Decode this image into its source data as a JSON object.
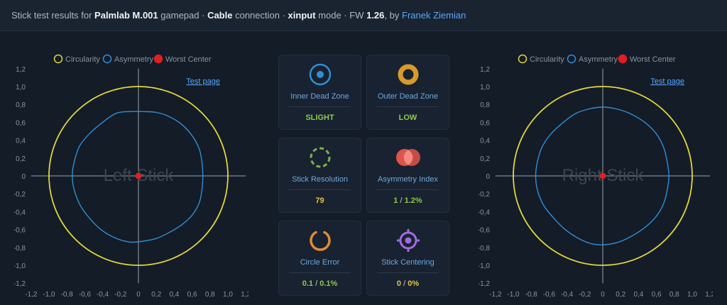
{
  "header": {
    "prefix": "Stick test results for",
    "device": "Palmlab M.001",
    "device_suffix": "gamepad ·",
    "connection": "Cable",
    "connection_suffix": "connection ·",
    "mode": "xinput",
    "mode_suffix": "mode · FW",
    "firmware": "1.26",
    "by_text": ", by",
    "author": "Franek Ziemian"
  },
  "legend": {
    "circularity": "Circularity",
    "asymmetry": "Asymmetry",
    "worst_center": "Worst Center"
  },
  "colors": {
    "circularity": "#e3d43a",
    "asymmetry": "#2f8fd6",
    "worst_center": "#e51c23",
    "axis": "#7d8590",
    "label_yellow": "#e3c341",
    "label_green": "#8fc94a"
  },
  "left_chart": {
    "watermark": "Left Stick",
    "test_link": "Test page"
  },
  "right_chart": {
    "watermark": "Right Stick",
    "test_link": "Test page"
  },
  "chart_data": [
    {
      "type": "scatter",
      "name": "Left Stick",
      "xlim": [
        -1.2,
        1.2
      ],
      "ylim": [
        -1.2,
        1.2
      ],
      "x_ticks": [
        "-1,2",
        "-1,0",
        "-0,8",
        "-0,6",
        "-0,4",
        "-0,2",
        "0",
        "0,2",
        "0,4",
        "0,6",
        "0,8",
        "1,0",
        "1,2"
      ],
      "y_ticks": [
        "1,2",
        "1,0",
        "0,8",
        "0,6",
        "0,4",
        "0,2",
        "0",
        "-0,2",
        "-0,4",
        "-0,6",
        "-0,8",
        "-1,0",
        "-1,2"
      ],
      "circularity_radius": 1.0,
      "asymmetry_points": [
        [
          0.72,
          0
        ],
        [
          0.71,
          0.15
        ],
        [
          0.68,
          0.3
        ],
        [
          0.6,
          0.45
        ],
        [
          0.48,
          0.58
        ],
        [
          0.33,
          0.67
        ],
        [
          0.2,
          0.71
        ],
        [
          0.06,
          0.72
        ],
        [
          -0.1,
          0.72
        ],
        [
          -0.25,
          0.7
        ],
        [
          -0.4,
          0.6
        ],
        [
          -0.55,
          0.47
        ],
        [
          -0.66,
          0.33
        ],
        [
          -0.72,
          0.15
        ],
        [
          -0.74,
          0
        ],
        [
          -0.72,
          -0.15
        ],
        [
          -0.65,
          -0.33
        ],
        [
          -0.55,
          -0.47
        ],
        [
          -0.42,
          -0.6
        ],
        [
          -0.27,
          -0.69
        ],
        [
          -0.1,
          -0.74
        ],
        [
          0.05,
          -0.73
        ],
        [
          0.2,
          -0.7
        ],
        [
          0.35,
          -0.63
        ],
        [
          0.48,
          -0.55
        ],
        [
          0.6,
          -0.44
        ],
        [
          0.68,
          -0.3
        ],
        [
          0.71,
          -0.15
        ]
      ],
      "worst_center": [
        0,
        0
      ]
    },
    {
      "type": "scatter",
      "name": "Right Stick",
      "xlim": [
        -1.2,
        1.2
      ],
      "ylim": [
        -1.2,
        1.2
      ],
      "x_ticks": [
        "-1,2",
        "-1,0",
        "-0,8",
        "-0,6",
        "-0,4",
        "-0,2",
        "0",
        "0,2",
        "0,4",
        "0,6",
        "0,8",
        "1,0",
        "1,2"
      ],
      "y_ticks": [
        "1,2",
        "1,0",
        "0,8",
        "0,6",
        "0,4",
        "0,2",
        "0",
        "-0,2",
        "-0,4",
        "-0,6",
        "-0,8",
        "-1,0",
        "-1,2"
      ],
      "circularity_radius": 1.0,
      "asymmetry_points": [
        [
          0.74,
          0
        ],
        [
          0.72,
          0.16
        ],
        [
          0.68,
          0.32
        ],
        [
          0.6,
          0.47
        ],
        [
          0.47,
          0.6
        ],
        [
          0.3,
          0.7
        ],
        [
          0.15,
          0.75
        ],
        [
          0.0,
          0.77
        ],
        [
          -0.15,
          0.75
        ],
        [
          -0.3,
          0.7
        ],
        [
          -0.44,
          0.6
        ],
        [
          -0.58,
          0.47
        ],
        [
          -0.68,
          0.32
        ],
        [
          -0.73,
          0.16
        ],
        [
          -0.75,
          0
        ],
        [
          -0.73,
          -0.16
        ],
        [
          -0.66,
          -0.33
        ],
        [
          -0.55,
          -0.47
        ],
        [
          -0.42,
          -0.6
        ],
        [
          -0.27,
          -0.7
        ],
        [
          -0.12,
          -0.76
        ],
        [
          0.02,
          -0.77
        ],
        [
          0.18,
          -0.74
        ],
        [
          0.33,
          -0.67
        ],
        [
          0.48,
          -0.57
        ],
        [
          0.6,
          -0.45
        ],
        [
          0.68,
          -0.31
        ],
        [
          0.72,
          -0.16
        ]
      ],
      "worst_center": [
        0,
        0
      ]
    }
  ],
  "cards": [
    {
      "label": "Inner Dead Zone",
      "value": "SLIGHT",
      "icon": "inner-dead-zone-icon"
    },
    {
      "label": "Outer Dead Zone",
      "value": "LOW",
      "icon": "outer-dead-zone-icon"
    },
    {
      "label": "Stick Resolution",
      "value": "79",
      "icon": "stick-resolution-icon"
    },
    {
      "label": "Asymmetry Index",
      "value_a": "1",
      "value_b": "1.2%",
      "separator": "/",
      "icon": "asymmetry-index-icon"
    },
    {
      "label": "Circle Error",
      "value_a": "0.1",
      "value_b": "0.1%",
      "separator": "/",
      "icon": "circle-error-icon"
    },
    {
      "label": "Stick Centering",
      "value_a": "0",
      "value_b": "0%",
      "separator": "/",
      "icon": "stick-centering-icon"
    }
  ]
}
